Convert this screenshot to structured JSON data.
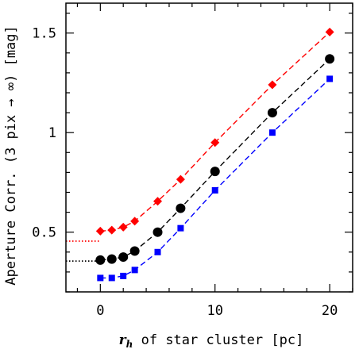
{
  "chart_data": {
    "type": "scatter",
    "title": "",
    "xlabel_italic": "r",
    "xlabel_sub": "h",
    "xlabel_rest": " of star cluster [pc]",
    "ylabel": "Aperture Corr. (3 pix → ∞) [mag]",
    "xlim": [
      -3,
      22
    ],
    "ylim": [
      0.2,
      1.65
    ],
    "x_ticks": [
      0,
      10,
      20
    ],
    "x_tick_labels": [
      "0",
      "10",
      "20"
    ],
    "x_minor_step": 2,
    "y_ticks": [
      0.5,
      1.0,
      1.5
    ],
    "y_tick_labels": [
      "0.5",
      "1",
      "1.5"
    ],
    "y_minor_step": 0.1,
    "grid": false,
    "x": [
      0,
      1,
      2,
      3,
      5,
      7,
      10,
      15,
      20
    ],
    "series": [
      {
        "color": "#ff0000",
        "marker": "diamond",
        "line_style": "dashed",
        "values": [
          0.505,
          0.51,
          0.525,
          0.555,
          0.655,
          0.765,
          0.95,
          1.24,
          1.505
        ],
        "reference_level": 0.455
      },
      {
        "color": "#000000",
        "marker": "circle",
        "line_style": "dashed",
        "values": [
          0.36,
          0.365,
          0.375,
          0.405,
          0.5,
          0.62,
          0.805,
          1.1,
          1.37
        ],
        "reference_level": 0.355
      },
      {
        "color": "#0000ff",
        "marker": "square",
        "line_style": "dashed",
        "values": [
          0.27,
          0.27,
          0.28,
          0.31,
          0.4,
          0.52,
          0.71,
          1.0,
          1.27
        ],
        "reference_level": null
      }
    ]
  }
}
